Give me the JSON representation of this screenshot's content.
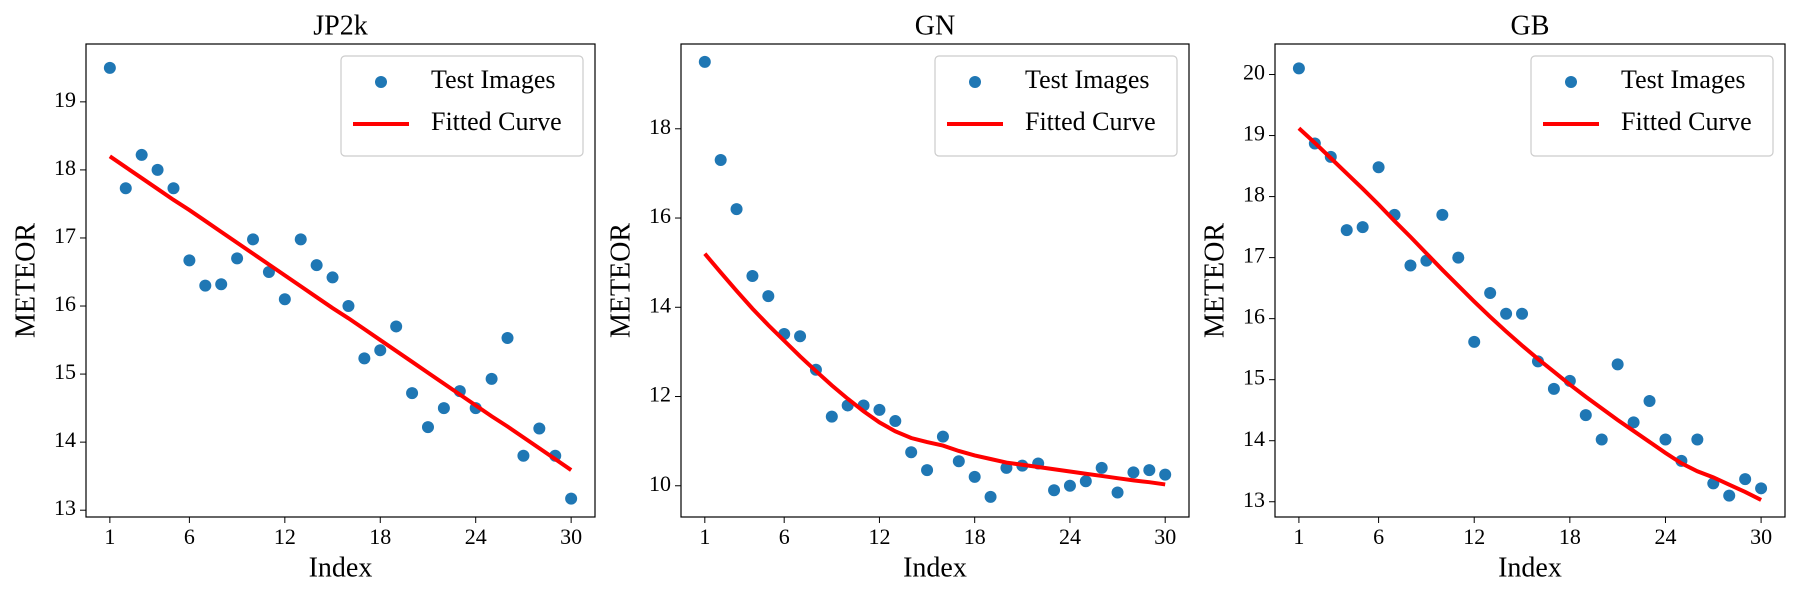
{
  "chart_data": [
    {
      "type": "scatter",
      "title": "JP2k",
      "xlabel": "Index",
      "ylabel": "METEOR",
      "x": [
        1,
        2,
        3,
        4,
        5,
        6,
        7,
        8,
        9,
        10,
        11,
        12,
        13,
        14,
        15,
        16,
        17,
        18,
        19,
        20,
        21,
        22,
        23,
        24,
        25,
        26,
        27,
        28,
        29,
        30
      ],
      "xlim": [
        -0.5,
        31.5
      ],
      "xticks": [
        1,
        6,
        12,
        18,
        24,
        30
      ],
      "ylim": [
        12.9,
        19.85
      ],
      "yticks": [
        13,
        14,
        15,
        16,
        17,
        18,
        19
      ],
      "legend": "upper right",
      "series": [
        {
          "name": "Test Images",
          "type": "scatter",
          "color": "#1f77b4",
          "values": [
            19.5,
            17.73,
            18.22,
            18.0,
            17.73,
            16.67,
            16.3,
            16.32,
            16.7,
            16.98,
            16.5,
            16.1,
            16.98,
            16.6,
            16.42,
            16.0,
            15.23,
            15.35,
            15.7,
            14.72,
            14.22,
            14.5,
            14.75,
            14.5,
            14.93,
            15.53,
            13.8,
            14.2,
            13.8,
            13.17
          ]
        },
        {
          "name": "Fitted Curve",
          "type": "line",
          "color": "#ff0000",
          "values": [
            18.2,
            18.04,
            17.88,
            17.72,
            17.56,
            17.41,
            17.25,
            17.09,
            16.93,
            16.77,
            16.61,
            16.45,
            16.29,
            16.13,
            15.97,
            15.82,
            15.66,
            15.5,
            15.34,
            15.18,
            15.02,
            14.86,
            14.7,
            14.54,
            14.38,
            14.23,
            14.07,
            13.91,
            13.75,
            13.59
          ]
        }
      ]
    },
    {
      "type": "scatter",
      "title": "GN",
      "xlabel": "Index",
      "ylabel": "METEOR",
      "x": [
        1,
        2,
        3,
        4,
        5,
        6,
        7,
        8,
        9,
        10,
        11,
        12,
        13,
        14,
        15,
        16,
        17,
        18,
        19,
        20,
        21,
        22,
        23,
        24,
        25,
        26,
        27,
        28,
        29,
        30
      ],
      "xlim": [
        -0.5,
        31.5
      ],
      "xticks": [
        1,
        6,
        12,
        18,
        24,
        30
      ],
      "ylim": [
        9.3,
        19.9
      ],
      "yticks": [
        10,
        12,
        14,
        16,
        18
      ],
      "legend": "upper right",
      "series": [
        {
          "name": "Test Images",
          "type": "scatter",
          "color": "#1f77b4",
          "values": [
            19.5,
            17.3,
            16.2,
            14.7,
            14.25,
            13.4,
            13.35,
            12.6,
            11.55,
            11.8,
            11.8,
            11.7,
            11.45,
            10.75,
            10.35,
            11.1,
            10.55,
            10.2,
            9.75,
            10.4,
            10.45,
            10.5,
            9.9,
            10.0,
            10.1,
            10.4,
            9.85,
            10.3,
            10.35,
            10.25
          ]
        },
        {
          "name": "Fitted Curve",
          "type": "line",
          "color": "#ff0000",
          "values": [
            15.2,
            14.78,
            14.37,
            13.97,
            13.6,
            13.25,
            12.9,
            12.57,
            12.25,
            11.95,
            11.67,
            11.42,
            11.22,
            11.07,
            10.98,
            10.9,
            10.78,
            10.68,
            10.6,
            10.52,
            10.47,
            10.42,
            10.37,
            10.32,
            10.27,
            10.22,
            10.17,
            10.12,
            10.08,
            10.03
          ]
        }
      ]
    },
    {
      "type": "scatter",
      "title": "GB",
      "xlabel": "Index",
      "ylabel": "METEOR",
      "x": [
        1,
        2,
        3,
        4,
        5,
        6,
        7,
        8,
        9,
        10,
        11,
        12,
        13,
        14,
        15,
        16,
        17,
        18,
        19,
        20,
        21,
        22,
        23,
        24,
        25,
        26,
        27,
        28,
        29,
        30
      ],
      "xlim": [
        -0.5,
        31.5
      ],
      "xticks": [
        1,
        6,
        12,
        18,
        24,
        30
      ],
      "ylim": [
        12.75,
        20.5
      ],
      "yticks": [
        13,
        14,
        15,
        16,
        17,
        18,
        19,
        20
      ],
      "legend": "upper right",
      "series": [
        {
          "name": "Test Images",
          "type": "scatter",
          "color": "#1f77b4",
          "values": [
            20.1,
            18.87,
            18.65,
            17.45,
            17.5,
            18.48,
            17.7,
            16.87,
            16.95,
            17.7,
            17.0,
            15.62,
            16.42,
            16.08,
            16.08,
            15.3,
            14.85,
            14.98,
            14.42,
            14.02,
            15.25,
            14.3,
            14.65,
            14.02,
            13.67,
            14.02,
            13.3,
            13.1,
            13.37,
            13.22
          ]
        },
        {
          "name": "Fitted Curve",
          "type": "line",
          "color": "#ff0000",
          "values": [
            19.12,
            18.88,
            18.63,
            18.38,
            18.13,
            17.87,
            17.6,
            17.34,
            17.07,
            16.8,
            16.54,
            16.28,
            16.03,
            15.79,
            15.56,
            15.34,
            15.13,
            14.92,
            14.72,
            14.53,
            14.34,
            14.16,
            13.98,
            13.8,
            13.63,
            13.5,
            13.4,
            13.28,
            13.16,
            13.03
          ]
        }
      ]
    }
  ]
}
